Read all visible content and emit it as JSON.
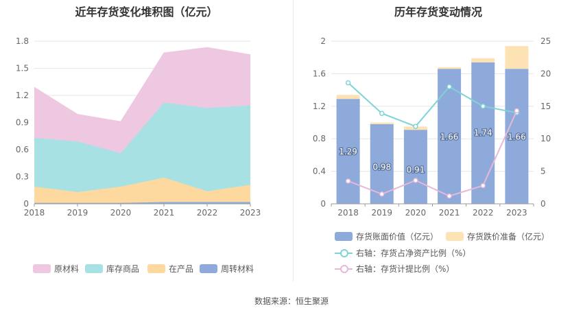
{
  "footer": "数据来源：恒生聚源",
  "chart_data": [
    {
      "type": "area",
      "title": "近年存货变化堆积图（亿元）",
      "categories": [
        "2018",
        "2019",
        "2020",
        "2021",
        "2022",
        "2023"
      ],
      "y_ticks": [
        "0",
        "0.3",
        "0.6",
        "0.9",
        "1.2",
        "1.5",
        "1.8"
      ],
      "ylim": [
        0,
        1.8
      ],
      "stacked": true,
      "grid": true,
      "legend_position": "bottom",
      "series": [
        {
          "name": "周转材料",
          "color": "#8eaadb",
          "values": [
            0.01,
            0.01,
            0.01,
            0.02,
            0.02,
            0.02
          ]
        },
        {
          "name": "在产品",
          "color": "#fdd9a0",
          "values": [
            0.18,
            0.12,
            0.18,
            0.27,
            0.12,
            0.19
          ]
        },
        {
          "name": "库存商品",
          "color": "#a8e1e3",
          "values": [
            0.54,
            0.56,
            0.37,
            0.83,
            0.92,
            0.88
          ]
        },
        {
          "name": "原材料",
          "color": "#edc8e0",
          "values": [
            0.56,
            0.3,
            0.35,
            0.55,
            0.67,
            0.56
          ]
        }
      ],
      "legend_order": [
        "原材料",
        "库存商品",
        "在产品",
        "周转材料"
      ]
    },
    {
      "type": "bar",
      "title": "历年存货变动情况",
      "categories": [
        "2018",
        "2019",
        "2020",
        "2021",
        "2022",
        "2023"
      ],
      "left_ticks": [
        "0",
        "0.4",
        "0.8",
        "1.2",
        "1.6",
        "2"
      ],
      "right_ticks": [
        "0",
        "5",
        "10",
        "15",
        "20",
        "25"
      ],
      "ylim_left": [
        0,
        2
      ],
      "ylim_right": [
        0,
        25
      ],
      "grid": true,
      "legend_position": "bottom",
      "bars": [
        {
          "name": "存货账面价值（亿元）",
          "color": "#8eaadb",
          "values": [
            1.29,
            0.98,
            0.91,
            1.66,
            1.74,
            1.66
          ],
          "labels": [
            "1.29",
            "0.98",
            "0.91",
            "1.66",
            "1.74",
            "1.66"
          ]
        },
        {
          "name": "存货跌价准备（亿元）",
          "color": "#fde2b4",
          "values": [
            0.05,
            0.02,
            0.04,
            0.02,
            0.05,
            0.28
          ]
        }
      ],
      "lines": [
        {
          "name": "右轴：存货占净资产比例（%）",
          "color": "#7fd3d6",
          "values": [
            18.6,
            13.9,
            11.9,
            18.0,
            15.0,
            14.0
          ]
        },
        {
          "name": "右轴：存货计提比例（%）",
          "color": "#e6b8d6",
          "values": [
            3.5,
            1.5,
            3.6,
            1.2,
            2.8,
            14.3
          ]
        }
      ]
    }
  ]
}
